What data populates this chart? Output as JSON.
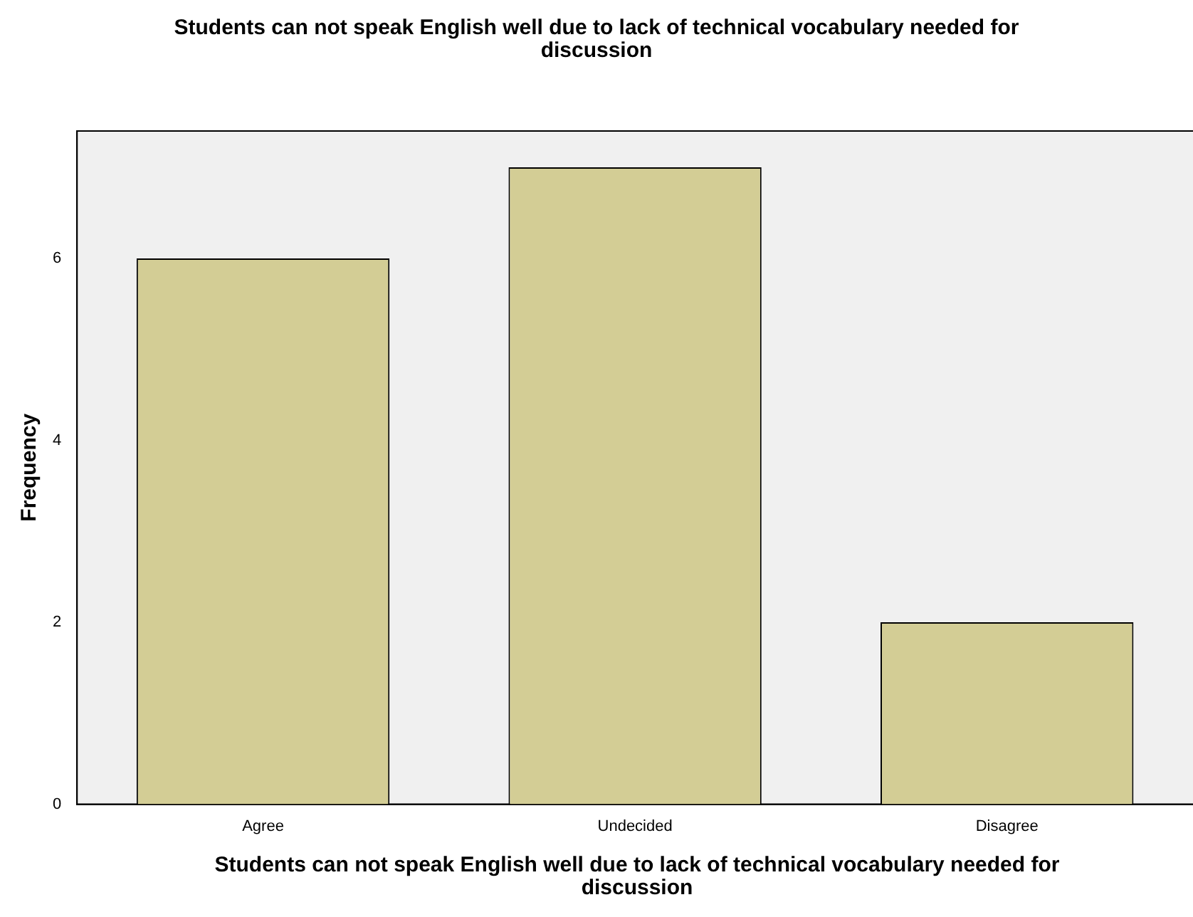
{
  "chart_data": {
    "type": "bar",
    "title": "Students can not speak English well due to lack of technical vocabulary needed for discussion",
    "xlabel": "Students can not speak English well due to lack of technical vocabulary needed for discussion",
    "ylabel": "Frequency",
    "categories": [
      "Agree",
      "Undecided",
      "Disagree"
    ],
    "values": [
      6,
      7,
      2
    ],
    "color": "#d3cd95",
    "ylim": [
      0,
      7.4
    ],
    "yticks": [
      0,
      2,
      4,
      6
    ],
    "grid": false,
    "legend": false
  }
}
